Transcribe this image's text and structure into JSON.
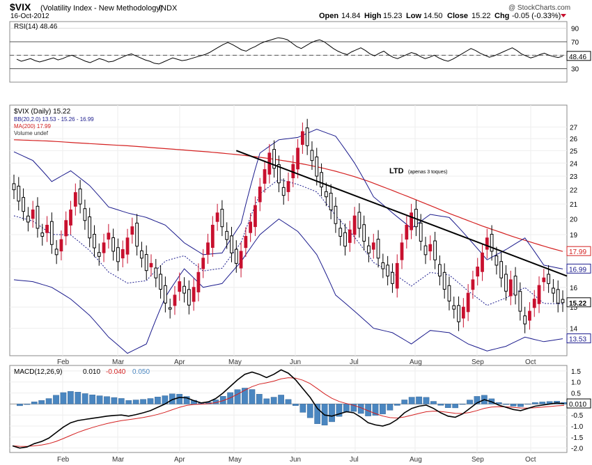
{
  "header": {
    "symbol": "$VIX",
    "description": "(Volatility Index - New Methodology)",
    "exchange": "INDX",
    "date": "16-Oct-2012",
    "brand": "@ StockCharts.com",
    "open_label": "Open",
    "open": "14.84",
    "high_label": "High",
    "high": "15.23",
    "low_label": "Low",
    "low": "14.50",
    "close_label": "Close",
    "close": "15.22",
    "chg_label": "Chg",
    "chg": "-0.05 (-0.33%)"
  },
  "colors": {
    "candle_up": "#000000",
    "candle_down": "#c8102e",
    "bollinger": "#1a1a8c",
    "ma200": "#d42020",
    "macd_line": "#000000",
    "signal_line": "#d42020",
    "histogram": "#4a86c0",
    "grid": "#d9d9d9"
  },
  "chart_data": [
    {
      "panel": "rsi",
      "type": "line",
      "legend": "RSI(14) 48.46",
      "last_value_label": "48.46",
      "ylim": [
        10,
        100
      ],
      "yticks": [
        30,
        50,
        70,
        90
      ],
      "reference_lines": [
        30,
        70
      ],
      "values": [
        44,
        41,
        43,
        45,
        42,
        40,
        42,
        44,
        46,
        43,
        45,
        48,
        50,
        47,
        44,
        41,
        39,
        42,
        45,
        43,
        40,
        41,
        44,
        47,
        50,
        52,
        49,
        46,
        43,
        41,
        38,
        37,
        40,
        43,
        46,
        44,
        42,
        43,
        45,
        47,
        49,
        51,
        54,
        58,
        62,
        66,
        69,
        66,
        62,
        58,
        56,
        60,
        63,
        67,
        70,
        72,
        74,
        76,
        75,
        73,
        68,
        63,
        60,
        64,
        68,
        71,
        73,
        70,
        65,
        60,
        56,
        53,
        51,
        55,
        58,
        61,
        57,
        52,
        49,
        53,
        56,
        51,
        47,
        45,
        48,
        51,
        54,
        52,
        48,
        45,
        47,
        50,
        46,
        43,
        41,
        44,
        48,
        52,
        56,
        60,
        57,
        53,
        50,
        47,
        49,
        52,
        55,
        58,
        61,
        57,
        52,
        49,
        46,
        48,
        51,
        53,
        50,
        48,
        46.6,
        48.46
      ]
    },
    {
      "panel": "price",
      "type": "candlestick",
      "legend": [
        {
          "label": "$VIX (Daily) 15.22",
          "color": "#000000"
        },
        {
          "label": "BB(20,2.0) 13.53 - 15.26 - 16.99",
          "color": "#1a1a8c"
        },
        {
          "label": "MA(200) 17.99",
          "color": "#d42020"
        },
        {
          "label": "Volume undef",
          "color": "#555555"
        }
      ],
      "ylim": [
        12.8,
        29
      ],
      "log_scale": true,
      "yticks": [
        14,
        15,
        16,
        17,
        18,
        19,
        20,
        21,
        22,
        23,
        24,
        25,
        26,
        27
      ],
      "x_months": [
        "Feb",
        "Mar",
        "Apr",
        "May",
        "Jun",
        "Jul",
        "Aug",
        "Sep",
        "Oct"
      ],
      "markers": [
        {
          "label": "17.99",
          "value": 17.99,
          "color": "#d42020"
        },
        {
          "label": "16.99",
          "value": 16.99,
          "color": "#1a1a8c"
        },
        {
          "label": "15.22",
          "value": 15.22,
          "color": "#000000"
        },
        {
          "label": "13.53",
          "value": 13.53,
          "color": "#1a1a8c"
        }
      ],
      "closes": [
        22.0,
        21.2,
        20.5,
        19.8,
        20.6,
        19.4,
        18.9,
        19.6,
        18.4,
        17.8,
        18.7,
        19.9,
        20.6,
        21.8,
        21.0,
        19.9,
        18.8,
        18.2,
        17.7,
        18.5,
        19.1,
        18.0,
        17.4,
        18.1,
        18.8,
        19.5,
        18.3,
        17.6,
        16.9,
        17.3,
        16.5,
        15.9,
        15.2,
        14.9,
        15.6,
        16.3,
        15.7,
        15.1,
        16.0,
        16.8,
        17.6,
        18.5,
        19.6,
        20.4,
        19.5,
        18.7,
        17.9,
        17.3,
        18.0,
        18.9,
        19.8,
        20.9,
        22.2,
        23.5,
        24.8,
        23.6,
        22.5,
        21.6,
        22.6,
        23.9,
        25.2,
        26.6,
        25.4,
        24.2,
        23.0,
        22.2,
        21.5,
        20.6,
        19.7,
        18.9,
        18.3,
        19.3,
        20.2,
        19.4,
        18.6,
        17.9,
        18.5,
        17.6,
        17.0,
        16.6,
        16.2,
        17.3,
        18.5,
        19.6,
        20.4,
        19.5,
        18.6,
        17.8,
        18.4,
        17.5,
        16.6,
        15.9,
        15.3,
        14.9,
        14.3,
        15.0,
        15.7,
        16.4,
        17.1,
        17.9,
        18.8,
        18.0,
        17.2,
        16.5,
        15.8,
        16.4,
        15.6,
        14.8,
        14.2,
        14.8,
        15.4,
        16.1,
        16.5,
        16.2,
        15.7,
        15.2,
        15.22
      ],
      "ma200": [
        25.9,
        25.85,
        25.8,
        25.72,
        25.63,
        25.55,
        25.47,
        25.4,
        25.3,
        25.2,
        25.1,
        25.0,
        24.9,
        24.78,
        24.65,
        24.5,
        24.33,
        24.13,
        23.91,
        23.65,
        23.35,
        23.0,
        22.6,
        22.15,
        21.7,
        21.25,
        20.8,
        20.35,
        19.95,
        19.55,
        19.2,
        18.85,
        18.55,
        18.25,
        17.99
      ],
      "bb_upper_anchor": [
        24.9,
        24.2,
        22.6,
        23.4,
        22.3,
        20.8,
        20.4,
        20.1,
        19.6,
        18.5,
        17.8,
        17.9,
        19.7,
        24.8,
        25.9,
        26.1,
        26.8,
        26.2,
        24.0,
        21.5,
        20.4,
        19.4,
        20.3,
        20.1,
        18.8,
        17.5,
        18.1,
        18.8,
        17.2,
        16.99
      ],
      "bb_lower_anchor": [
        16.4,
        16.3,
        16.0,
        15.4,
        14.6,
        13.6,
        12.9,
        13.3,
        15.5,
        17.0,
        16.0,
        16.2,
        17.4,
        19.0,
        20.0,
        19.2,
        17.8,
        15.6,
        14.8,
        14.0,
        13.8,
        13.3,
        13.9,
        13.8,
        13.3,
        13.0,
        13.2,
        13.6,
        13.4,
        13.53
      ],
      "trendline": {
        "label": "LTD",
        "note": "(apenas 3 toques)",
        "from": 25.0,
        "to": 16.6
      }
    },
    {
      "panel": "macd",
      "type": "line+histogram",
      "legend": [
        {
          "label": "MACD(12,26,9)",
          "color": "#000000"
        },
        {
          "label": "0.010",
          "color": "#000000"
        },
        {
          "label": "-0.040",
          "color": "#d42020"
        },
        {
          "label": "0.050",
          "color": "#4a86c0"
        }
      ],
      "last_value_label": "0.010",
      "ylim": [
        -2.2,
        1.75
      ],
      "yticks": [
        -2.0,
        -1.5,
        -1.0,
        -0.5,
        0.0,
        0.5,
        1.0,
        1.5
      ],
      "x_months": [
        "Feb",
        "Mar",
        "Apr",
        "May",
        "Jun",
        "Jul",
        "Aug",
        "Sep",
        "Oct"
      ],
      "macd": [
        -1.9,
        -2.0,
        -1.95,
        -1.8,
        -1.7,
        -1.55,
        -1.3,
        -1.05,
        -0.85,
        -0.75,
        -0.7,
        -0.65,
        -0.6,
        -0.55,
        -0.52,
        -0.5,
        -0.55,
        -0.48,
        -0.4,
        -0.3,
        -0.15,
        0.0,
        0.2,
        0.3,
        0.28,
        0.15,
        0.05,
        0.1,
        0.25,
        0.5,
        0.8,
        1.1,
        1.35,
        1.45,
        1.35,
        1.2,
        1.35,
        1.55,
        1.4,
        1.1,
        0.7,
        0.3,
        -0.2,
        -0.5,
        -0.55,
        -0.45,
        -0.35,
        -0.4,
        -0.6,
        -0.85,
        -0.95,
        -1.0,
        -0.9,
        -0.7,
        -0.4,
        -0.2,
        -0.1,
        -0.05,
        -0.2,
        -0.4,
        -0.55,
        -0.6,
        -0.45,
        -0.2,
        0.05,
        0.2,
        0.1,
        -0.05,
        -0.15,
        -0.25,
        -0.3,
        -0.2,
        -0.1,
        -0.05,
        0.0,
        0.05,
        0.01
      ]
    }
  ]
}
